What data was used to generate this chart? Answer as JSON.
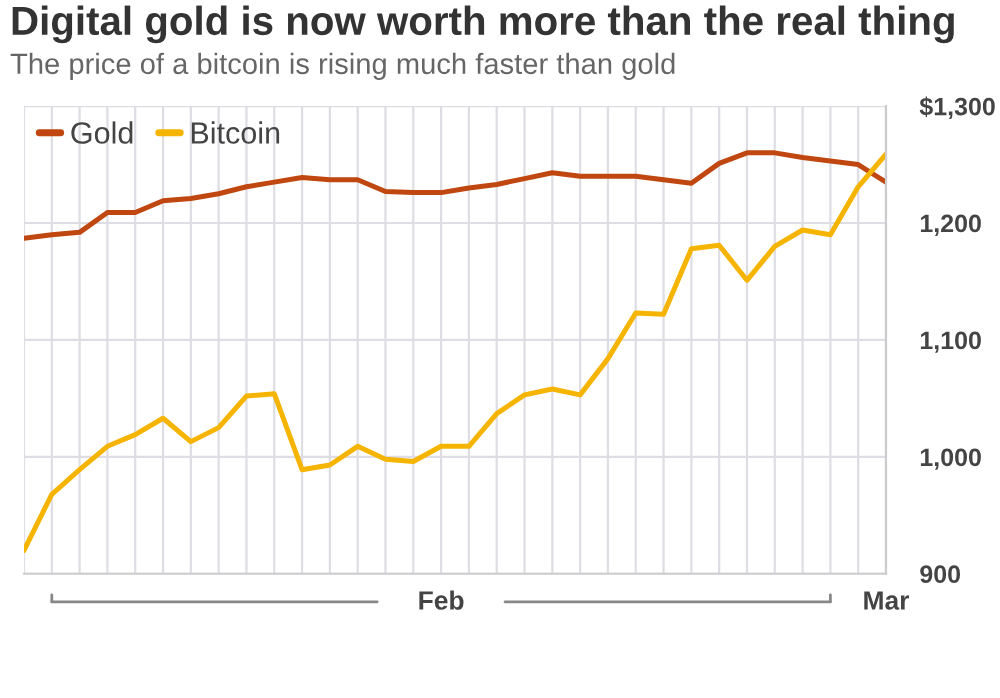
{
  "chart_data": {
    "type": "line",
    "title": "Digital gold is now worth more than the real thing",
    "subtitle": "The price of a bitcoin is rising much faster than gold",
    "categories": [
      null,
      null,
      null,
      null,
      null,
      null,
      null,
      null,
      null,
      null,
      null,
      null,
      null,
      null,
      null,
      "Feb",
      null,
      null,
      null,
      null,
      null,
      null,
      null,
      null,
      null,
      null,
      null,
      null,
      null,
      null,
      null,
      "Mar"
    ],
    "series": [
      {
        "name": "Gold",
        "color": "#c0470f",
        "values": [
          1187,
          1190,
          1192,
          1209,
          1209,
          1219,
          1221,
          1225,
          1231,
          1235,
          1239,
          1237,
          1237,
          1227,
          1226,
          1226,
          1230,
          1233,
          1238,
          1243,
          1240,
          1240,
          1240,
          1237,
          1234,
          1251,
          1260,
          1260,
          1256,
          1253,
          1250,
          1235
        ]
      },
      {
        "name": "Bitcoin",
        "color": "#f5b400",
        "values": [
          920,
          968,
          989,
          1009,
          1019,
          1033,
          1013,
          1025,
          1052,
          1054,
          989,
          993,
          1009,
          998,
          996,
          1009,
          1009,
          1037,
          1053,
          1058,
          1053,
          1084,
          1123,
          1122,
          1178,
          1181,
          1151,
          1180,
          1194,
          1190,
          1231,
          1259
        ]
      }
    ],
    "ylim": [
      900,
      1300
    ],
    "yticks": [
      900,
      {
        "value": 1000,
        "label": "1,000"
      },
      {
        "value": 1100,
        "label": "1,100"
      },
      {
        "value": 1200,
        "label": "1,200"
      },
      {
        "value": 1300,
        "label": "$1,300"
      }
    ],
    "grid": true,
    "legend": "top left"
  }
}
